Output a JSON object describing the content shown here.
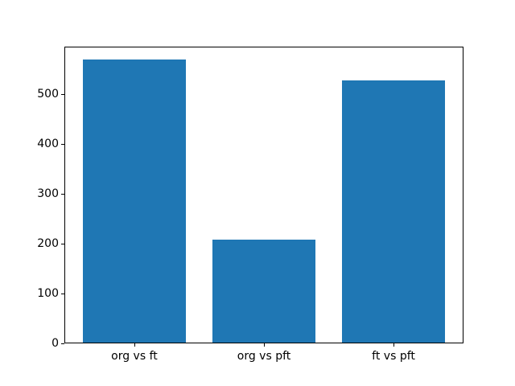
{
  "chart_data": {
    "type": "bar",
    "categories": [
      "org vs ft",
      "org vs pft",
      "ft vs pft"
    ],
    "values": [
      568,
      206,
      527
    ],
    "title": "",
    "xlabel": "",
    "ylabel": "",
    "ylim": [
      0,
      596
    ],
    "yticks": [
      0,
      100,
      200,
      300,
      400,
      500
    ],
    "xlim": [
      -0.54,
      2.54
    ],
    "bar_width": 0.8,
    "bar_color": "#1f77b4",
    "axis_color": "#000000",
    "text_color": "#000000",
    "background": "#ffffff",
    "grid": "off",
    "legend": "none"
  }
}
